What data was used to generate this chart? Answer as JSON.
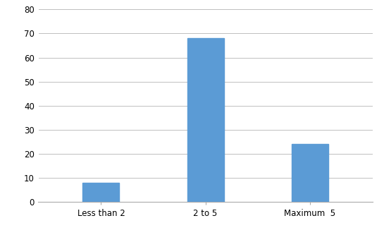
{
  "categories": [
    "Less than 2",
    "2 to 5",
    "Maximum  5"
  ],
  "values": [
    8,
    68,
    24
  ],
  "bar_color": "#5B9BD5",
  "ylim": [
    0,
    80
  ],
  "yticks": [
    0,
    10,
    20,
    30,
    40,
    50,
    60,
    70,
    80
  ],
  "background_color": "#ffffff",
  "grid_color": "#c0c0c0",
  "bar_width": 0.35,
  "figsize": [
    5.45,
    3.33
  ],
  "dpi": 100
}
